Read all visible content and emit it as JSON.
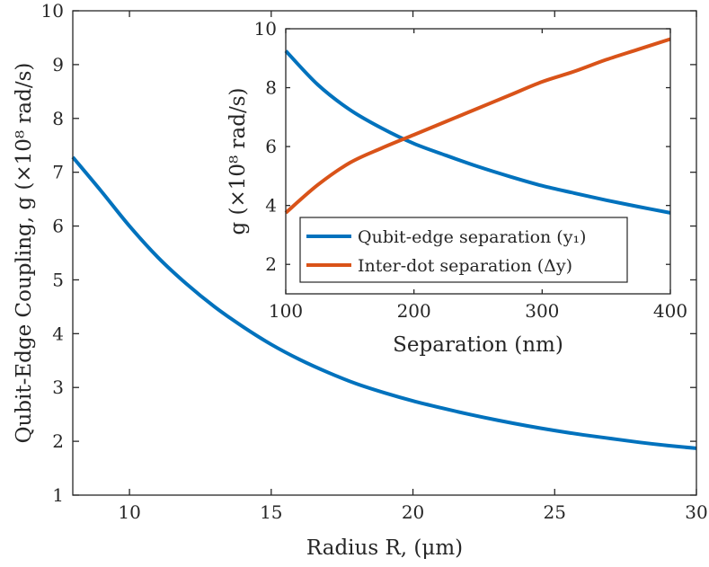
{
  "chart_data": [
    {
      "id": "main",
      "type": "line",
      "title": "",
      "xlabel": "Radius R, (μm)",
      "ylabel": "Qubit-Edge Coupling, g (×10⁸ rad/s)",
      "xlim": [
        8,
        30
      ],
      "ylim": [
        1,
        10
      ],
      "xticks": [
        10,
        15,
        20,
        25,
        30
      ],
      "yticks": [
        1,
        2,
        3,
        4,
        5,
        6,
        7,
        8,
        9,
        10
      ],
      "series": [
        {
          "name": "Qubit-edge coupling",
          "color": "#0072BD",
          "x": [
            8,
            9,
            10,
            11,
            12,
            13,
            14,
            15,
            16,
            17,
            18,
            19,
            20,
            21,
            22,
            23,
            24,
            25,
            26,
            27,
            28,
            29,
            30
          ],
          "y": [
            7.28,
            6.65,
            6.0,
            5.42,
            4.93,
            4.5,
            4.13,
            3.8,
            3.52,
            3.28,
            3.07,
            2.9,
            2.75,
            2.62,
            2.5,
            2.39,
            2.29,
            2.2,
            2.12,
            2.05,
            1.98,
            1.92,
            1.87
          ]
        }
      ]
    },
    {
      "id": "inset",
      "type": "line",
      "title": "",
      "xlabel": "Separation (nm)",
      "ylabel": "g (×10⁸ rad/s)",
      "xlim": [
        100,
        400
      ],
      "ylim": [
        1,
        10
      ],
      "xticks": [
        100,
        200,
        300,
        400
      ],
      "yticks": [
        2,
        4,
        6,
        8,
        10
      ],
      "ytick_labels": [
        "2",
        "4",
        "6",
        "8",
        "10"
      ],
      "legend_position": "bottom-left",
      "series": [
        {
          "name": "Qubit-edge separation",
          "legend_symbol": "(y₁)",
          "color": "#0072BD",
          "x": [
            100,
            125,
            150,
            175,
            200,
            225,
            250,
            275,
            300,
            325,
            350,
            375,
            400
          ],
          "y": [
            9.25,
            8.1,
            7.25,
            6.62,
            6.1,
            5.7,
            5.32,
            4.98,
            4.67,
            4.42,
            4.18,
            3.96,
            3.75
          ]
        },
        {
          "name": "Inter-dot separation",
          "legend_symbol": "(Δy)",
          "color": "#D95319",
          "x": [
            100,
            125,
            150,
            175,
            200,
            225,
            250,
            275,
            300,
            325,
            350,
            375,
            400
          ],
          "y": [
            3.75,
            4.7,
            5.45,
            5.95,
            6.4,
            6.85,
            7.3,
            7.75,
            8.2,
            8.55,
            8.95,
            9.3,
            9.65
          ]
        }
      ]
    }
  ]
}
